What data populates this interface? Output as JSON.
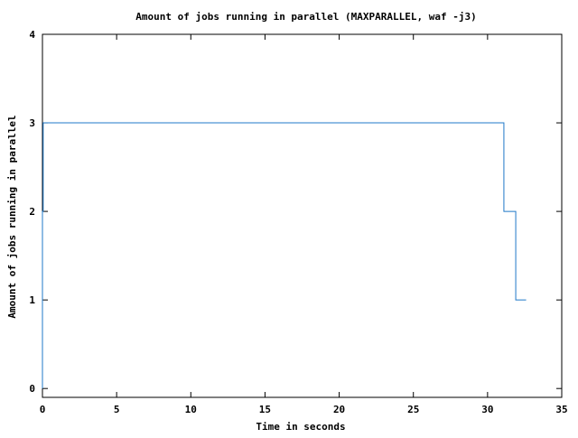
{
  "chart_data": {
    "type": "line",
    "title": "Amount of jobs running in parallel (MAXPARALLEL, waf -j3)",
    "xlabel": "Time in seconds",
    "ylabel": "Amount of jobs running in parallel",
    "xlim": [
      0,
      35
    ],
    "ylim": [
      -0.1,
      4
    ],
    "xticks": [
      0,
      5,
      10,
      15,
      20,
      25,
      30,
      35
    ],
    "yticks": [
      0,
      1,
      2,
      3,
      4
    ],
    "grid": false,
    "line_style": "step",
    "series_color": "#1f78c8",
    "series": [
      {
        "x": [
          0.0,
          0.0,
          0.05,
          0.05,
          31.1,
          31.1,
          31.9,
          31.9,
          32.6
        ],
        "y": [
          0,
          2,
          2,
          3,
          3,
          2,
          2,
          1,
          1
        ]
      }
    ]
  }
}
